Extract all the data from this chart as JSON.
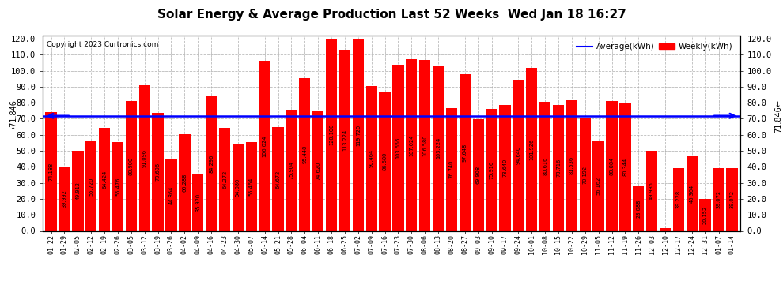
{
  "title": "Solar Energy & Average Production Last 52 Weeks  Wed Jan 18 16:27",
  "copyright": "Copyright 2023 Curtronics.com",
  "legend_avg": "Average(kWh)",
  "legend_weekly": "Weekly(kWh)",
  "average_line": 71.846,
  "bar_color": "#ff0000",
  "avg_line_color": "#0000ff",
  "ylim_max": 122.0,
  "yticks": [
    0.0,
    10.0,
    20.0,
    30.0,
    40.0,
    50.0,
    60.0,
    70.0,
    80.0,
    90.0,
    100.0,
    110.0,
    120.0
  ],
  "ytick_labels": [
    "0.0",
    "10.0",
    "20.0",
    "30.0",
    "40.0",
    "50.0",
    "60.0",
    "70.0",
    "80.0",
    "90.0",
    "100.0",
    "110.0",
    "120.0"
  ],
  "categories": [
    "01-22",
    "01-29",
    "02-05",
    "02-12",
    "02-19",
    "02-26",
    "03-05",
    "03-12",
    "03-19",
    "03-26",
    "04-02",
    "04-09",
    "04-16",
    "04-23",
    "04-30",
    "05-07",
    "05-14",
    "05-21",
    "05-28",
    "06-04",
    "06-11",
    "06-18",
    "06-25",
    "07-02",
    "07-09",
    "07-16",
    "07-23",
    "07-30",
    "08-06",
    "08-13",
    "08-20",
    "08-27",
    "09-03",
    "09-10",
    "09-17",
    "09-24",
    "10-01",
    "10-08",
    "10-15",
    "10-22",
    "10-29",
    "11-05",
    "11-12",
    "11-19",
    "11-26",
    "12-03",
    "12-10",
    "12-17",
    "12-24",
    "12-31",
    "01-07",
    "01-14"
  ],
  "values": [
    74.188,
    39.992,
    49.912,
    55.72,
    64.424,
    55.476,
    80.9,
    91.096,
    73.696,
    44.864,
    60.288,
    35.92,
    84.296,
    64.272,
    54.08,
    55.464,
    106.024,
    64.672,
    75.904,
    95.448,
    74.62,
    120.1,
    113.224,
    119.72,
    90.464,
    86.68,
    103.656,
    107.024,
    106.58,
    103.224,
    76.74,
    97.648,
    69.908,
    75.916,
    78.64,
    94.64,
    101.926,
    80.616,
    78.716,
    81.536,
    70.192,
    56.162,
    80.884,
    80.344,
    28.088,
    49.935,
    1.928,
    39.228,
    46.364,
    20.152,
    39.072,
    39.072
  ]
}
